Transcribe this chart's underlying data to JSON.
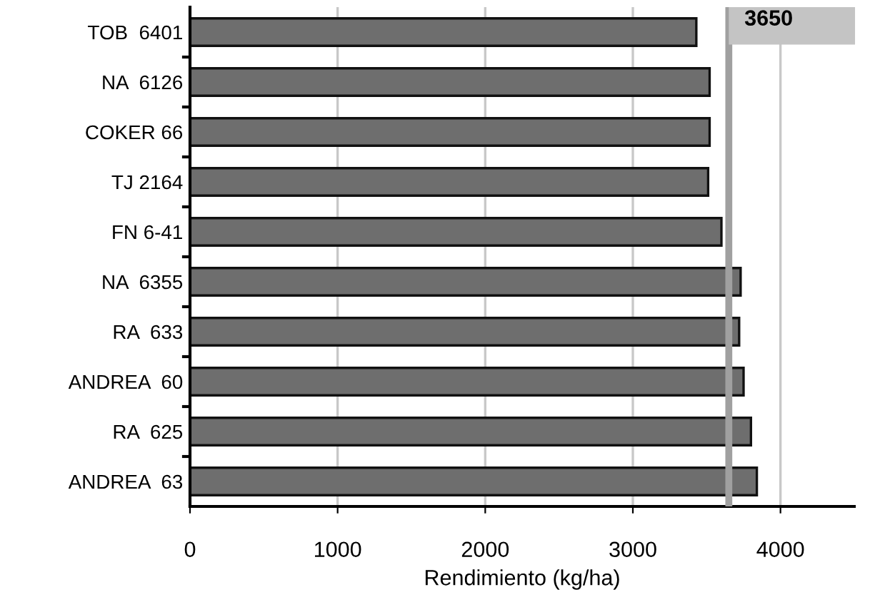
{
  "chart_data": {
    "type": "bar",
    "orientation": "horizontal",
    "xlabel": "Rendimiento (kg/ha)",
    "categories": [
      "TOB  6401",
      "NA  6126",
      "COKER 66",
      "TJ 2164",
      "FN 6-41",
      "NA  6355",
      "RA  633",
      "ANDREA  60",
      "RA  625",
      "ANDREA  63"
    ],
    "values": [
      3430,
      3520,
      3520,
      3510,
      3600,
      3730,
      3720,
      3750,
      3800,
      3840
    ],
    "color": "#6e6e6e",
    "xlim": [
      0,
      4500
    ],
    "xticks": [
      0,
      1000,
      2000,
      3000,
      4000
    ],
    "grid": "x",
    "ref_lines": [
      {
        "axis": "x",
        "value": 3650,
        "label": "3650",
        "color": "#a0a0a0"
      }
    ]
  }
}
